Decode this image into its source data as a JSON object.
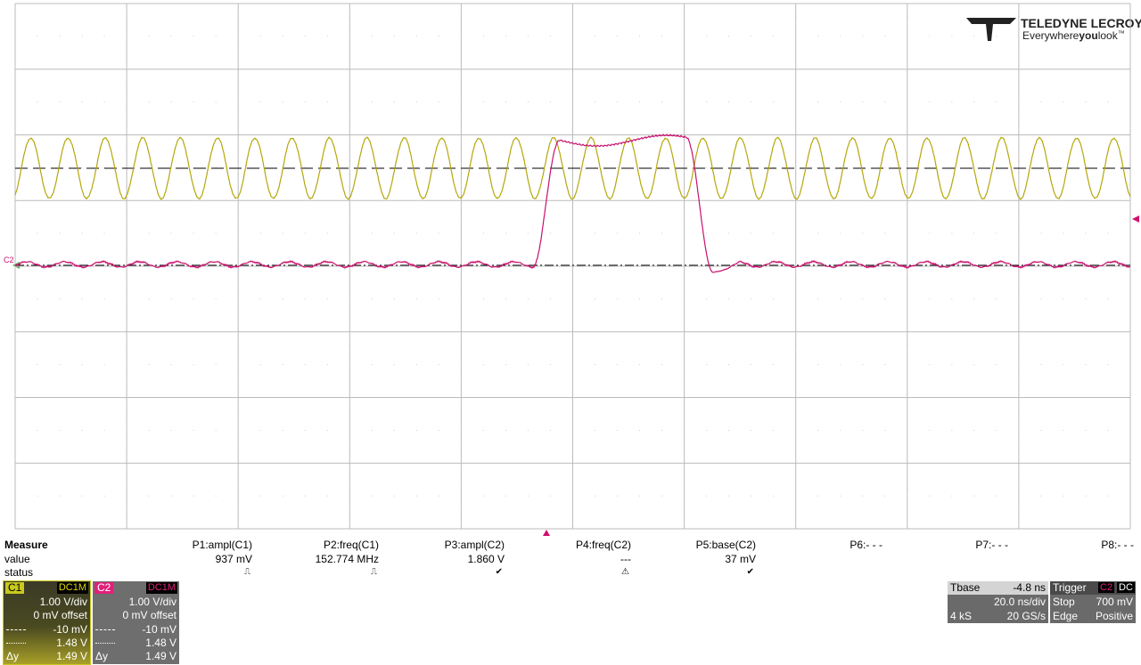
{
  "logo": {
    "brand": "TELEDYNE LECROY",
    "tagline_parts": [
      "Everywhere",
      "you",
      "look"
    ],
    "trademark": "™"
  },
  "grid_marker": "C2",
  "measure": {
    "header": "Measure",
    "value_label": "value",
    "status_label": "status",
    "params": [
      {
        "name": "P1:ampl(C1)",
        "value": "937 mV",
        "status": "⎍"
      },
      {
        "name": "P2:freq(C1)",
        "value": "152.774 MHz",
        "status": "⎍"
      },
      {
        "name": "P3:ampl(C2)",
        "value": "1.860 V",
        "status": "✔"
      },
      {
        "name": "P4:freq(C2)",
        "value": "---",
        "status": "⚠"
      },
      {
        "name": "P5:base(C2)",
        "value": "37 mV",
        "status": "✔"
      },
      {
        "name": "P6:- - -"
      },
      {
        "name": "P7:- - -"
      },
      {
        "name": "P8:- - -"
      }
    ]
  },
  "channels": [
    {
      "label": "C1",
      "coupling": "DC1M",
      "vdiv": "1.00 V/div",
      "offset": "0 mV offset",
      "cursor1": "-10 mV",
      "cursor2": "1.48 V",
      "delta_label": "Δy",
      "delta": "1.49 V"
    },
    {
      "label": "C2",
      "coupling": "DC1M",
      "vdiv": "1.00 V/div",
      "offset": "0 mV offset",
      "cursor1": "-10 mV",
      "cursor2": "1.48 V",
      "delta_label": "Δy",
      "delta": "1.49 V"
    }
  ],
  "timebase": {
    "label": "Tbase",
    "delay": "-4.8 ns",
    "tdiv": "20.0 ns/div",
    "samples": "4 kS",
    "rate": "20 GS/s"
  },
  "trigger": {
    "label": "Trigger",
    "source": "C2",
    "coupling": "DC",
    "mode": "Stop",
    "level": "700 mV",
    "type": "Edge",
    "slope": "Positive"
  }
}
